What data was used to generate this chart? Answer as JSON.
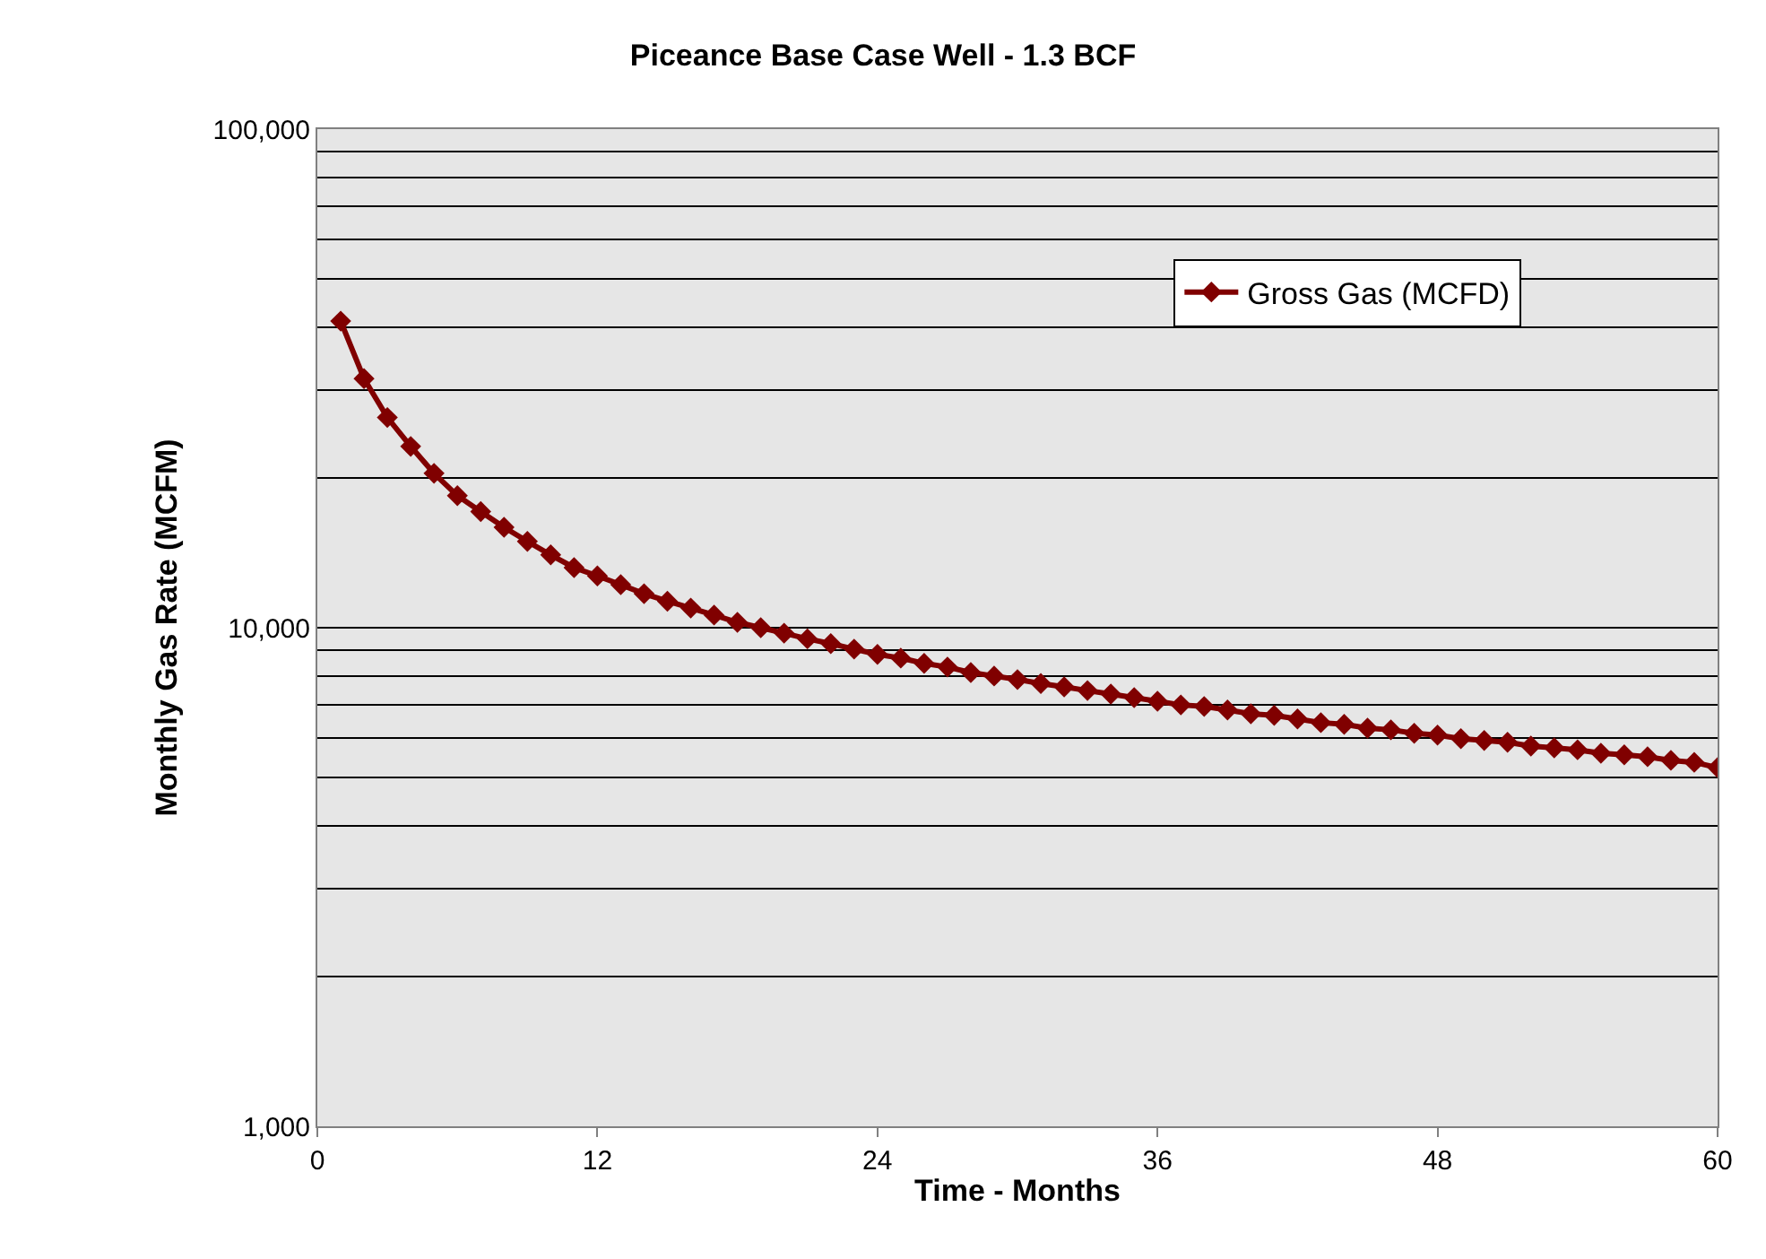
{
  "chart_data": {
    "type": "line",
    "title": "Piceance Base Case Well - 1.3 BCF",
    "xlabel": "Time - Months",
    "ylabel": "Monthly Gas Rate (MCFM)",
    "x": [
      1,
      2,
      3,
      4,
      5,
      6,
      7,
      8,
      9,
      10,
      11,
      12,
      13,
      14,
      15,
      16,
      17,
      18,
      19,
      20,
      21,
      22,
      23,
      24,
      25,
      26,
      27,
      28,
      29,
      30,
      31,
      32,
      33,
      34,
      35,
      36,
      37,
      38,
      39,
      40,
      41,
      42,
      43,
      44,
      45,
      46,
      47,
      48,
      49,
      50,
      51,
      52,
      53,
      54,
      55,
      56,
      57,
      58,
      59,
      60
    ],
    "series": [
      {
        "name": "Gross Gas (MCFD)",
        "color": "#800000",
        "values": [
          41200,
          31600,
          26400,
          23100,
          20400,
          18400,
          17100,
          15900,
          14900,
          14000,
          13200,
          12700,
          12200,
          11700,
          11300,
          10950,
          10600,
          10250,
          10000,
          9750,
          9500,
          9290,
          9060,
          8840,
          8690,
          8480,
          8340,
          8130,
          8000,
          7870,
          7730,
          7610,
          7480,
          7360,
          7240,
          7120,
          7000,
          6950,
          6840,
          6720,
          6670,
          6560,
          6450,
          6400,
          6290,
          6240,
          6140,
          6090,
          5990,
          5940,
          5890,
          5790,
          5740,
          5690,
          5600,
          5560,
          5510,
          5420,
          5370,
          5240
        ]
      }
    ],
    "xlim": [
      0,
      60
    ],
    "xticks": [
      0,
      12,
      24,
      36,
      48,
      60
    ],
    "ylim": [
      1000,
      100000
    ],
    "log": true,
    "yticks": [
      {
        "value": 1000,
        "label": "1,000"
      },
      {
        "value": 2000,
        "label": null
      },
      {
        "value": 3000,
        "label": null
      },
      {
        "value": 4000,
        "label": null
      },
      {
        "value": 5000,
        "label": null
      },
      {
        "value": 6000,
        "label": null
      },
      {
        "value": 7000,
        "label": null
      },
      {
        "value": 8000,
        "label": null
      },
      {
        "value": 9000,
        "label": null
      },
      {
        "value": 10000,
        "label": "10,000"
      },
      {
        "value": 20000,
        "label": null
      },
      {
        "value": 30000,
        "label": null
      },
      {
        "value": 40000,
        "label": null
      },
      {
        "value": 50000,
        "label": null
      },
      {
        "value": 60000,
        "label": null
      },
      {
        "value": 70000,
        "label": null
      },
      {
        "value": 80000,
        "label": null
      },
      {
        "value": 90000,
        "label": null
      },
      {
        "value": 100000,
        "label": "100,000"
      }
    ],
    "grid": "y",
    "legend": "top right",
    "marker": "diamond",
    "line_style": "solid"
  }
}
